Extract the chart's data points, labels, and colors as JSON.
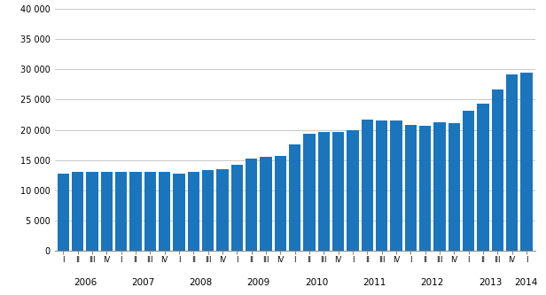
{
  "values": [
    12700,
    13000,
    13100,
    13100,
    13100,
    13100,
    13100,
    13000,
    12800,
    13000,
    13300,
    13500,
    14200,
    15300,
    15600,
    15700,
    17600,
    19400,
    19600,
    19700,
    20000,
    21700,
    21600,
    21500,
    20800,
    20700,
    21200,
    21100,
    23100,
    24300,
    26700,
    29100,
    29500
  ],
  "quarter_labels": [
    "I",
    "II",
    "III",
    "IV",
    "I",
    "II",
    "III",
    "IV",
    "I",
    "II",
    "III",
    "IV",
    "I",
    "II",
    "III",
    "IV",
    "I",
    "II",
    "III",
    "IV",
    "I",
    "II",
    "III",
    "IV",
    "I",
    "II",
    "III",
    "IV",
    "I",
    "II",
    "III",
    "IV",
    "I"
  ],
  "year_label_names": [
    "2006",
    "2007",
    "2008",
    "2009",
    "2010",
    "2011",
    "2012",
    "2013",
    "2014"
  ],
  "year_centers": [
    1.5,
    5.5,
    9.5,
    13.5,
    17.5,
    21.5,
    25.5,
    29.5,
    32.0
  ],
  "bar_color": "#1b75bc",
  "ylim": [
    0,
    40000
  ],
  "yticks": [
    0,
    5000,
    10000,
    15000,
    20000,
    25000,
    30000,
    35000,
    40000
  ],
  "ytick_labels": [
    "0",
    "5 000",
    "10 000",
    "15 000",
    "20 000",
    "25 000",
    "30 000",
    "35 000",
    "40 000"
  ],
  "background_color": "#ffffff",
  "grid_color": "#b0b0b0"
}
